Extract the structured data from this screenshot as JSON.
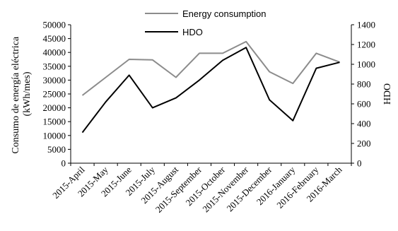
{
  "chart_data": {
    "type": "line",
    "categories": [
      "2015-April",
      "2015-May",
      "2015-June",
      "2015-July",
      "2015-August",
      "2015-September",
      "2015-October",
      "2015-November",
      "2015-December",
      "2016-January",
      "2016-February",
      "2016-March"
    ],
    "series": [
      {
        "name": "Energy consumption",
        "axis": "left",
        "color": "#8c8c8c",
        "values": [
          24500,
          31000,
          37500,
          37300,
          31000,
          39700,
          39700,
          43900,
          33000,
          28800,
          39700,
          36500
        ]
      },
      {
        "name": "HDO",
        "axis": "right",
        "color": "#000000",
        "values": [
          310,
          620,
          890,
          560,
          660,
          840,
          1040,
          1170,
          640,
          430,
          960,
          1020
        ]
      }
    ],
    "ylabel_left_line1": "Consumo de energía eléctrica",
    "ylabel_left_line2": "(kWh/mes)",
    "ylabel_right": "HDO",
    "ylim_left": [
      0,
      50000
    ],
    "yticks_left": [
      "0",
      "5000",
      "10000",
      "15000",
      "20000",
      "25000",
      "30000",
      "35000",
      "40000",
      "45000",
      "50000"
    ],
    "ylim_right": [
      0,
      1400
    ],
    "yticks_right": [
      "0",
      "200",
      "400",
      "600",
      "800",
      "1000",
      "1200",
      "1400"
    ],
    "legend_position": "top",
    "grid": false
  }
}
